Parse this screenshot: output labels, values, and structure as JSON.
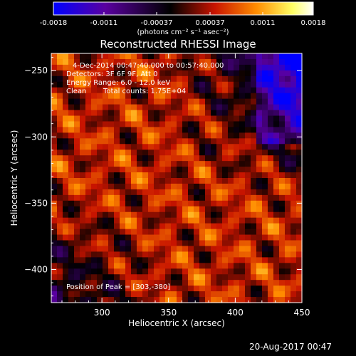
{
  "chart_data": {
    "type": "heatmap",
    "title": "Reconstructed RHESSI Image",
    "xlabel": "Heliocentric X (arcsec)",
    "ylabel": "Heliocentric Y (arcsec)",
    "xlim": [
      262,
      450
    ],
    "ylim": [
      -425,
      -237
    ],
    "x_ticks": [
      300,
      350,
      400,
      450
    ],
    "y_ticks": [
      -250,
      -300,
      -350,
      -400
    ],
    "colorbar": {
      "range": [
        -0.0018,
        0.0018
      ],
      "ticks": [
        "-0.0018",
        "-0.0011",
        "-0.00037",
        "0.00037",
        "0.0011",
        "0.0018"
      ],
      "unit_label": "(photons cm⁻² s⁻¹ asec⁻²)",
      "colors": [
        "#0000ff",
        "#5a00a0",
        "#000000",
        "#c81400",
        "#ff8c00",
        "#ffff64",
        "#ffffff"
      ]
    },
    "annotations": {
      "time_range": "4-Dec-2014 00:47:40.000 to 00:57:40.000",
      "detectors": "Detectors: 3F 6F 9F, Att 0",
      "energy": "Energy Range: 6.0 - 12.0 keV",
      "method": "Clean",
      "counts": "Total counts: 1.75E+04",
      "peak": "Position of Peak = [303,-380]"
    },
    "footer_date": "20-Aug-2017 00:47"
  }
}
